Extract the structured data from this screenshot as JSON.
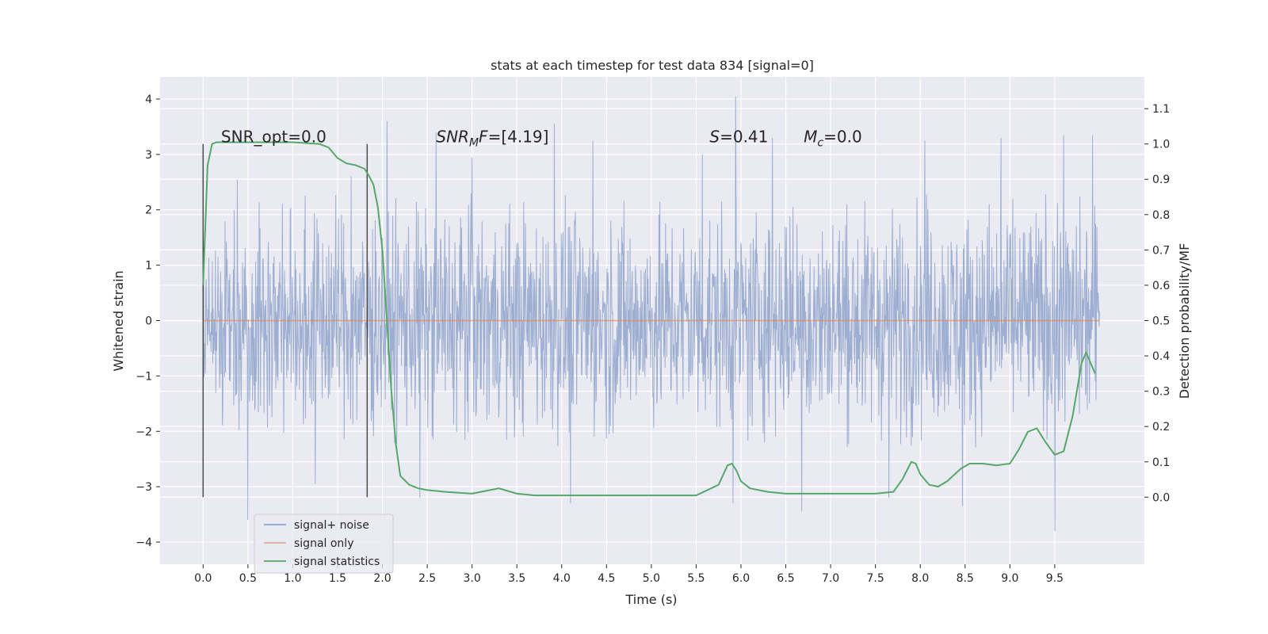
{
  "chart_data": {
    "type": "line",
    "title": "stats at each timestep for test data 834 [signal=0]",
    "xlabel": "Time (s)",
    "ylabel_left": "Whitened strain",
    "ylabel_right": "Detection probability/MF",
    "xlim": [
      -0.48,
      10.5
    ],
    "ylim_left": [
      -4.4,
      4.4
    ],
    "ylim_right": [
      -0.19,
      1.19
    ],
    "x_ticks": [
      "0.0",
      "0.5",
      "1.0",
      "1.5",
      "2.0",
      "2.5",
      "3.0",
      "3.5",
      "4.0",
      "4.5",
      "5.0",
      "5.5",
      "6.0",
      "6.5",
      "7.0",
      "7.5",
      "8.0",
      "8.5",
      "9.0",
      "9.5"
    ],
    "y_left_ticks": [
      "4",
      "3",
      "2",
      "1",
      "0",
      "−1",
      "−2",
      "−3",
      "−4"
    ],
    "y_right_ticks": [
      "1.1",
      "1.0",
      "0.9",
      "0.8",
      "0.7",
      "0.6",
      "0.5",
      "0.4",
      "0.3",
      "0.2",
      "0.1",
      "0.0"
    ],
    "grid": true,
    "legend_position": "lower-left",
    "colors": {
      "background": "#eaeaf2",
      "grid": "#ffffff",
      "noise": "#8fa3cb",
      "signal": "#dd8452",
      "statistics": "#55a868",
      "vline": "#4d4d4d"
    },
    "series": [
      {
        "name": "signal+ noise",
        "envelope": {
          "x_range": [
            0.0,
            10.0
          ],
          "typical_max": 2.3,
          "typical_min": -2.3,
          "peaks": [
            [
              0.38,
              2.55
            ],
            [
              1.65,
              2.6
            ],
            [
              2.05,
              3.6
            ],
            [
              2.6,
              3.4
            ],
            [
              3.0,
              2.95
            ],
            [
              3.92,
              3.55
            ],
            [
              4.35,
              3.25
            ],
            [
              5.57,
              3.0
            ],
            [
              5.94,
              4.05
            ],
            [
              6.35,
              3.3
            ],
            [
              8.05,
              3.25
            ],
            [
              8.9,
              3.3
            ],
            [
              9.6,
              3.35
            ],
            [
              9.92,
              3.35
            ],
            [
              0.5,
              -3.6
            ],
            [
              2.42,
              -3.2
            ],
            [
              4.1,
              -3.3
            ],
            [
              5.91,
              -3.3
            ],
            [
              6.68,
              -3.45
            ],
            [
              8.47,
              -3.35
            ],
            [
              9.5,
              -3.8
            ],
            [
              1.25,
              -2.95
            ],
            [
              7.65,
              -3.2
            ]
          ]
        }
      },
      {
        "name": "signal only",
        "x_range": [
          0.0,
          10.0
        ],
        "value": 0.0
      },
      {
        "name": "signal statistics",
        "x": [
          0.0,
          0.05,
          0.1,
          0.15,
          0.25,
          0.5,
          1.0,
          1.3,
          1.4,
          1.5,
          1.6,
          1.7,
          1.8,
          1.85,
          1.9,
          1.95,
          2.0,
          2.05,
          2.1,
          2.15,
          2.2,
          2.3,
          2.4,
          2.5,
          2.7,
          3.0,
          3.2,
          3.3,
          3.5,
          3.7,
          4.0,
          4.5,
          5.0,
          5.5,
          5.75,
          5.85,
          5.9,
          5.95,
          6.0,
          6.1,
          6.3,
          6.5,
          7.0,
          7.3,
          7.5,
          7.7,
          7.8,
          7.9,
          7.95,
          8.0,
          8.1,
          8.2,
          8.3,
          8.45,
          8.55,
          8.7,
          8.85,
          9.0,
          9.1,
          9.2,
          9.3,
          9.4,
          9.5,
          9.6,
          9.7,
          9.8,
          9.85,
          9.9,
          9.95
        ],
        "values": [
          0.6,
          0.94,
          1.0,
          1.005,
          1.005,
          1.005,
          1.005,
          1.0,
          0.99,
          0.96,
          0.945,
          0.94,
          0.93,
          0.91,
          0.885,
          0.82,
          0.7,
          0.5,
          0.3,
          0.15,
          0.06,
          0.035,
          0.025,
          0.02,
          0.015,
          0.01,
          0.02,
          0.025,
          0.01,
          0.005,
          0.005,
          0.005,
          0.005,
          0.005,
          0.035,
          0.09,
          0.095,
          0.075,
          0.045,
          0.025,
          0.015,
          0.01,
          0.01,
          0.01,
          0.01,
          0.015,
          0.05,
          0.1,
          0.095,
          0.065,
          0.035,
          0.03,
          0.045,
          0.08,
          0.095,
          0.095,
          0.09,
          0.095,
          0.135,
          0.185,
          0.195,
          0.155,
          0.12,
          0.13,
          0.23,
          0.38,
          0.41,
          0.38,
          0.35
        ]
      }
    ],
    "vlines": [
      0.0,
      1.83
    ],
    "vlines_range_right": [
      0.0,
      1.0
    ],
    "annotations": [
      {
        "text": "SNR_opt=0.0",
        "x": 0.2,
        "y_right": 1.0
      },
      {
        "main": "SNR",
        "sub": "M",
        "tail": "F=[4.19]",
        "x": 2.6,
        "y_right": 1.0
      },
      {
        "main": "S",
        "tail": "=0.41",
        "x": 5.65,
        "y_right": 1.0
      },
      {
        "main": "M",
        "sub": "c",
        "tail": "=0.0",
        "x": 6.7,
        "y_right": 1.0
      }
    ]
  }
}
